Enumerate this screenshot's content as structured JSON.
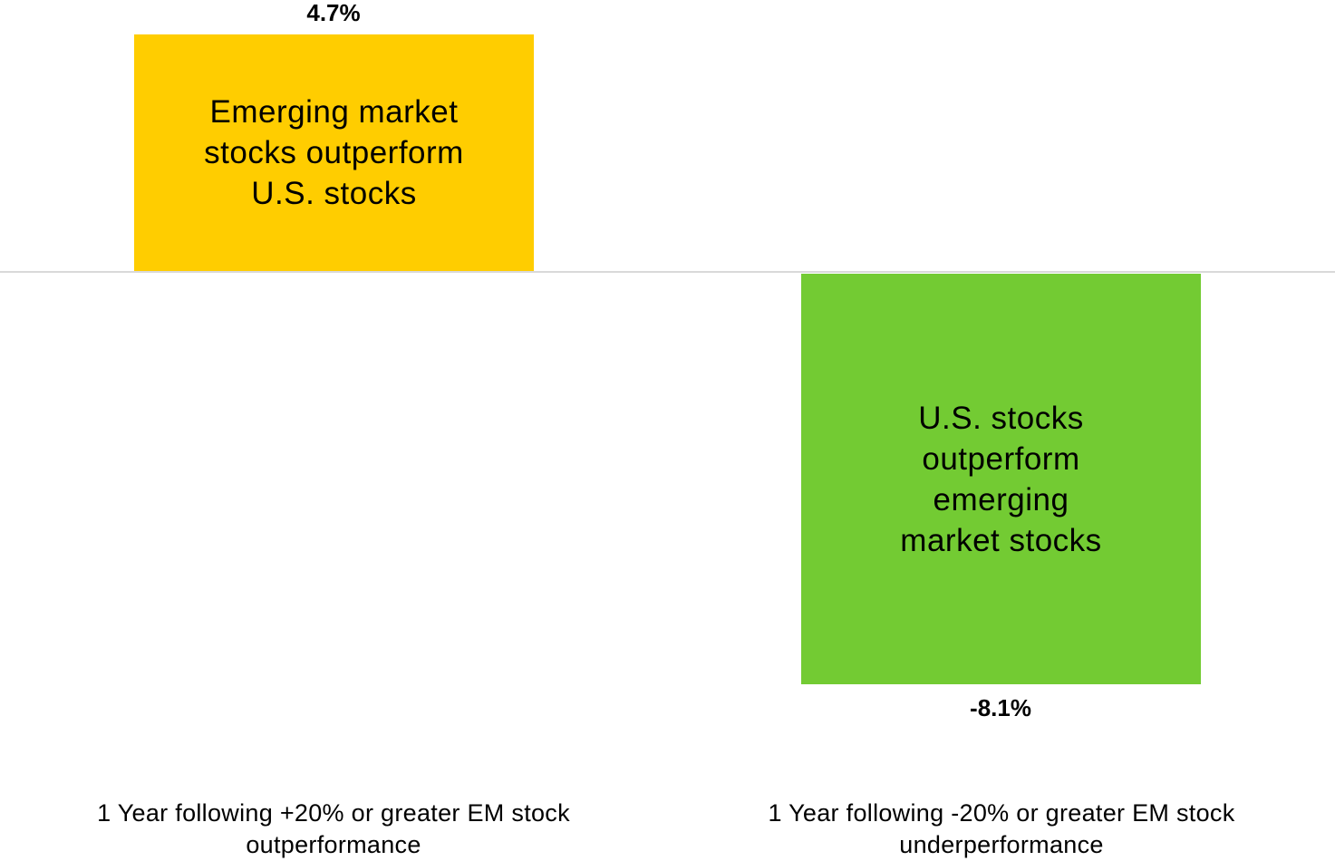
{
  "chart_data": {
    "type": "bar",
    "categories": [
      "1 Year following +20% or greater EM stock outperformance",
      "1 Year following -20% or greater EM stock underperformance"
    ],
    "values": [
      4.7,
      -8.1
    ],
    "unit": "%",
    "data_labels": [
      "4.7%",
      "-8.1%"
    ],
    "bar_annotations": [
      "Emerging market stocks outperform U.S. stocks",
      "U.S. stocks outperform emerging market stocks"
    ],
    "bar_colors": [
      "#ffcd00",
      "#73cb33"
    ],
    "title": "",
    "xlabel": "",
    "ylabel": "",
    "ylim": [
      -8.1,
      4.7
    ],
    "grid": false,
    "legend": null,
    "baseline_color": "#d9d9d9"
  },
  "bars": [
    {
      "value_label": "4.7%",
      "annotation": "Emerging market stocks outperform U.S. stocks",
      "category": "1 Year following +20% or greater EM stock outperformance"
    },
    {
      "value_label": "-8.1%",
      "annotation": "U.S. stocks outperform emerging market stocks",
      "category": "1 Year following -20% or greater EM stock underperformance"
    }
  ]
}
